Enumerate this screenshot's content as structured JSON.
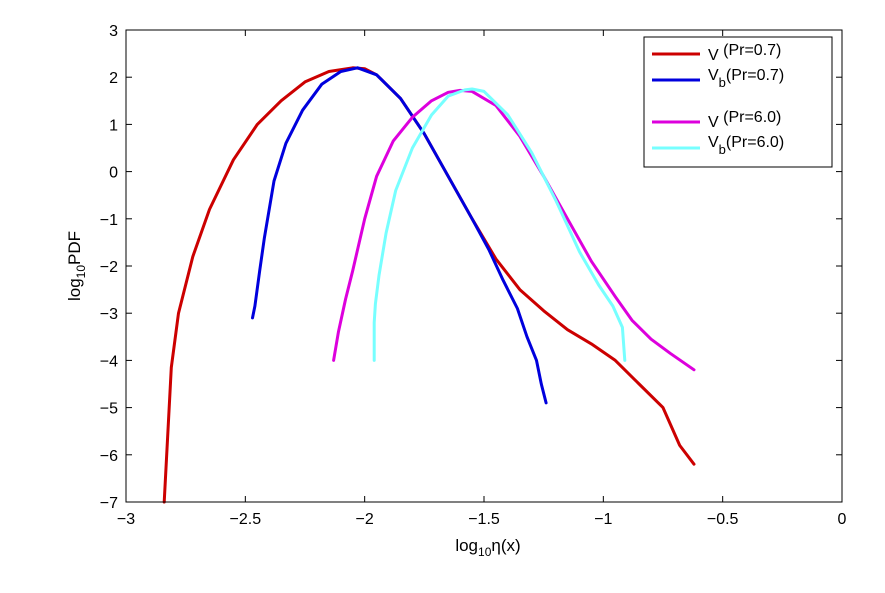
{
  "chart_data": {
    "type": "line",
    "title": "",
    "xlabel": {
      "base": "log",
      "sub": "10",
      "rest": "η(x)"
    },
    "ylabel": {
      "base": "log",
      "sub": "10",
      "rest": "PDF"
    },
    "xlim": [
      -3,
      0
    ],
    "ylim": [
      -7,
      3
    ],
    "xticks": [
      -3,
      -2.5,
      -2,
      -1.5,
      -1,
      -0.5,
      0
    ],
    "xtick_labels": [
      "−3",
      "−2.5",
      "−2",
      "−1.5",
      "−1",
      "−0.5",
      "0"
    ],
    "yticks": [
      -7,
      -6,
      -5,
      -4,
      -3,
      -2,
      -1,
      0,
      1,
      2,
      3
    ],
    "ytick_labels": [
      "−7",
      "−6",
      "−5",
      "−4",
      "−3",
      "−2",
      "−1",
      "0",
      "1",
      "2",
      "3"
    ],
    "legend_position": "top-right",
    "series": [
      {
        "name": "V (Pr=0.7)",
        "legend": {
          "main": "V",
          "sub": "",
          "rest": " (Pr=0.7)"
        },
        "color": "#cc0000",
        "x": [
          -2.84,
          -2.81,
          -2.78,
          -2.72,
          -2.65,
          -2.55,
          -2.45,
          -2.35,
          -2.25,
          -2.15,
          -2.05,
          -2.0,
          -1.95,
          -1.85,
          -1.75,
          -1.65,
          -1.55,
          -1.45,
          -1.35,
          -1.25,
          -1.15,
          -1.05,
          -0.95,
          -0.85,
          -0.75,
          -0.68,
          -0.62
        ],
        "y": [
          -7.0,
          -4.15,
          -3.0,
          -1.8,
          -0.8,
          0.25,
          1.0,
          1.5,
          1.9,
          2.12,
          2.2,
          2.18,
          2.05,
          1.55,
          0.8,
          -0.1,
          -1.0,
          -1.85,
          -2.5,
          -2.95,
          -3.35,
          -3.65,
          -4.0,
          -4.5,
          -5.0,
          -5.8,
          -6.2
        ]
      },
      {
        "name": "Vb (Pr=0.7)",
        "legend": {
          "main": "V",
          "sub": "b",
          "rest": "(Pr=0.7)"
        },
        "color": "#0000dd",
        "x": [
          -2.47,
          -2.46,
          -2.44,
          -2.42,
          -2.38,
          -2.33,
          -2.26,
          -2.18,
          -2.1,
          -2.03,
          -1.95,
          -1.85,
          -1.75,
          -1.65,
          -1.55,
          -1.48,
          -1.42,
          -1.36,
          -1.32,
          -1.28,
          -1.26,
          -1.24
        ],
        "y": [
          -3.1,
          -2.85,
          -2.1,
          -1.4,
          -0.2,
          0.6,
          1.3,
          1.85,
          2.12,
          2.2,
          2.05,
          1.55,
          0.8,
          -0.1,
          -1.0,
          -1.65,
          -2.3,
          -2.9,
          -3.5,
          -4.0,
          -4.5,
          -4.9
        ]
      },
      {
        "name": "V (Pr=6.0)",
        "legend": {
          "main": "V",
          "sub": "",
          "rest": " (Pr=6.0)"
        },
        "color": "#dd00dd",
        "x": [
          -2.13,
          -2.11,
          -2.08,
          -2.05,
          -2.0,
          -1.95,
          -1.88,
          -1.8,
          -1.72,
          -1.65,
          -1.6,
          -1.55,
          -1.45,
          -1.35,
          -1.25,
          -1.15,
          -1.05,
          -0.95,
          -0.88,
          -0.8,
          -0.72,
          -0.62
        ],
        "y": [
          -4.0,
          -3.4,
          -2.7,
          -2.1,
          -1.0,
          -0.1,
          0.65,
          1.15,
          1.5,
          1.68,
          1.72,
          1.7,
          1.4,
          0.75,
          -0.1,
          -1.0,
          -1.9,
          -2.65,
          -3.15,
          -3.55,
          -3.85,
          -4.2
        ]
      },
      {
        "name": "Vb (Pr=6.0)",
        "legend": {
          "main": "V",
          "sub": "b",
          "rest": "(Pr=6.0)"
        },
        "color": "#77ffff",
        "x": [
          -1.96,
          -1.96,
          -1.955,
          -1.94,
          -1.91,
          -1.87,
          -1.8,
          -1.72,
          -1.65,
          -1.58,
          -1.55,
          -1.5,
          -1.4,
          -1.3,
          -1.2,
          -1.1,
          -1.02,
          -0.96,
          -0.92,
          -0.91
        ],
        "y": [
          -4.0,
          -3.2,
          -2.8,
          -2.2,
          -1.3,
          -0.4,
          0.5,
          1.2,
          1.6,
          1.73,
          1.75,
          1.7,
          1.2,
          0.4,
          -0.6,
          -1.7,
          -2.4,
          -2.85,
          -3.3,
          -4.0
        ]
      }
    ]
  }
}
